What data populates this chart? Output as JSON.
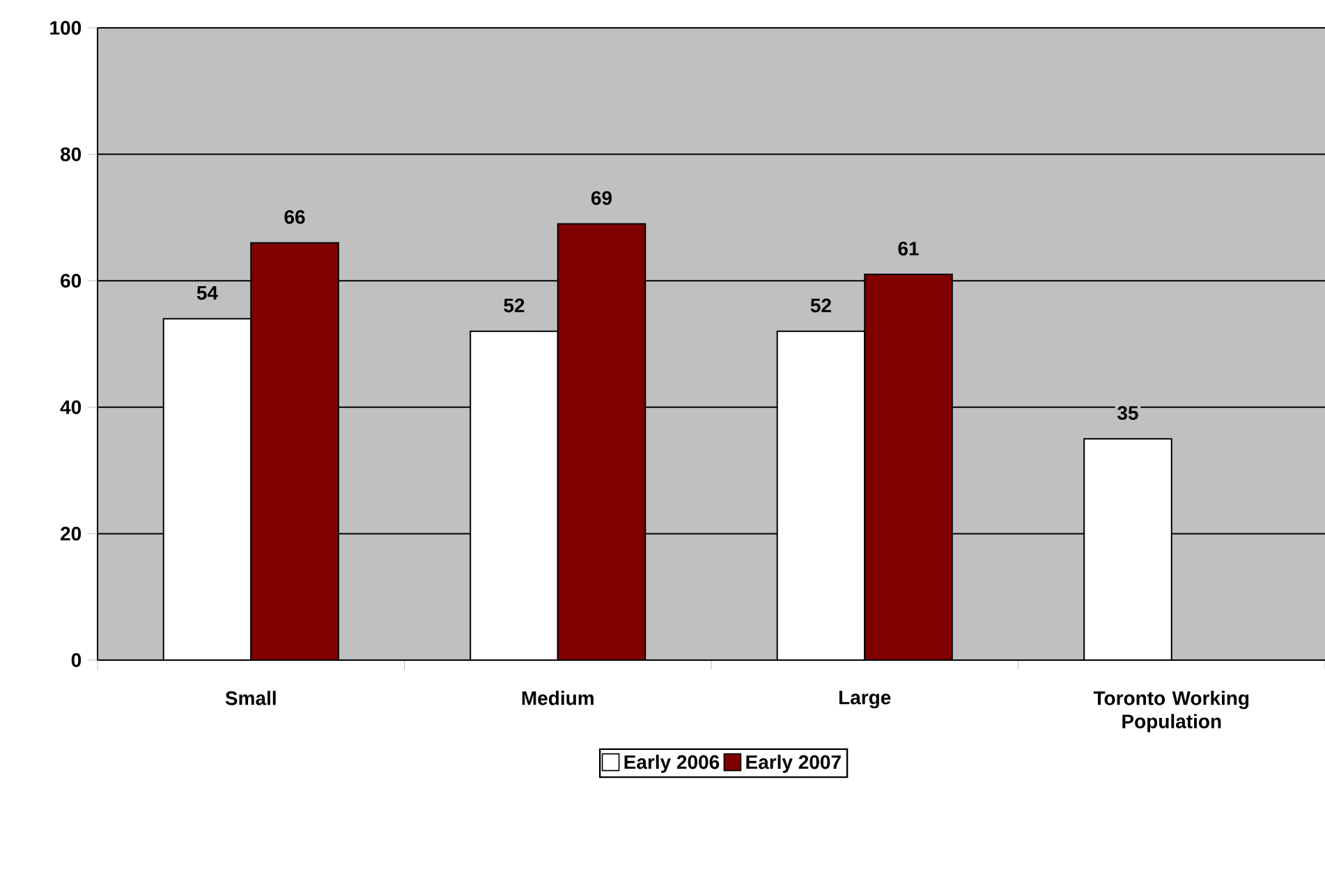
{
  "chart_data": {
    "type": "bar",
    "categories": [
      "Small",
      "Medium",
      "Large",
      "Toronto Working Population"
    ],
    "series": [
      {
        "name": "Early 2006",
        "color": "#ffffff",
        "values": [
          54,
          52,
          52,
          35
        ]
      },
      {
        "name": "Early 2007",
        "color": "#800000",
        "values": [
          66,
          69,
          61,
          null
        ]
      }
    ],
    "ylim": [
      0,
      100
    ],
    "yticks": [
      0,
      20,
      40,
      60,
      80,
      100
    ],
    "grid": "y",
    "legend": "bottom",
    "data_labels": true
  }
}
